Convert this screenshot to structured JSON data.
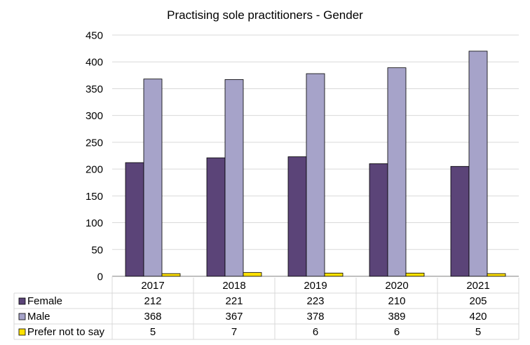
{
  "chart_data": {
    "type": "bar",
    "title": "Practising sole practitioners - Gender",
    "xlabel": "",
    "ylabel": "",
    "categories": [
      "2017",
      "2018",
      "2019",
      "2020",
      "2021"
    ],
    "ylim": [
      0,
      450
    ],
    "yticks": [
      0,
      50,
      100,
      150,
      200,
      250,
      300,
      350,
      400,
      450
    ],
    "grid": true,
    "legend": "data table below plot",
    "series": [
      {
        "name": "Female",
        "color": "#5b4478",
        "values": [
          212,
          221,
          223,
          210,
          205
        ]
      },
      {
        "name": "Male",
        "color": "#a6a3c9",
        "values": [
          368,
          367,
          378,
          389,
          420
        ]
      },
      {
        "name": "Prefer not to say",
        "color": "#ffe100",
        "values": [
          5,
          7,
          6,
          6,
          5
        ]
      }
    ]
  }
}
